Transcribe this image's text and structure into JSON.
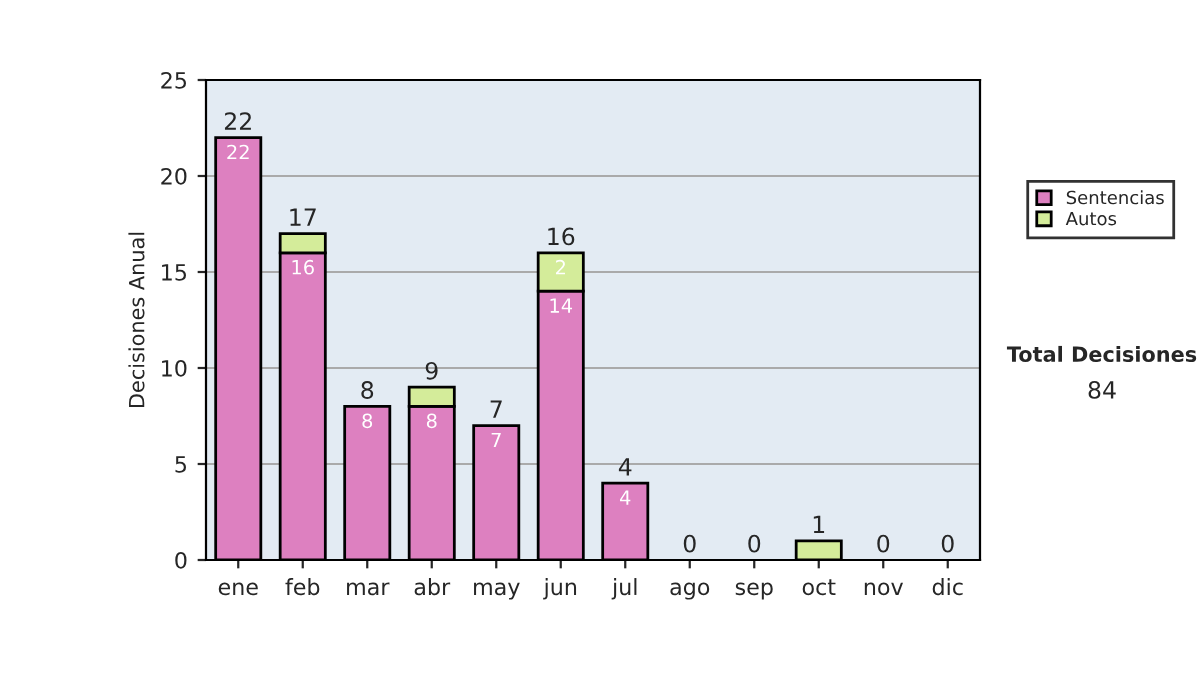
{
  "chart_data": {
    "type": "bar",
    "stacked": true,
    "ylabel": "Decisiones Anual",
    "categories": [
      "ene",
      "feb",
      "mar",
      "abr",
      "may",
      "jun",
      "jul",
      "ago",
      "sep",
      "oct",
      "nov",
      "dic"
    ],
    "series": [
      {
        "name": "Sentencias",
        "color": "#dd80c0",
        "values": [
          22,
          16,
          8,
          8,
          7,
          14,
          4,
          0,
          0,
          0,
          0,
          0
        ],
        "value_labels": [
          "22",
          "16",
          "8",
          "8",
          "7",
          "14",
          "4",
          null,
          null,
          null,
          null,
          null
        ]
      },
      {
        "name": "Autos",
        "color": "#d4ec9a",
        "values": [
          0,
          1,
          0,
          1,
          0,
          2,
          0,
          0,
          0,
          1,
          0,
          0
        ],
        "value_labels": [
          null,
          null,
          null,
          null,
          null,
          "2",
          null,
          null,
          null,
          null,
          null,
          null
        ]
      }
    ],
    "totals": [
      "22",
      "17",
      "8",
      "9",
      "7",
      "16",
      "4",
      "0",
      "0",
      "1",
      "0",
      "0"
    ],
    "ylim": [
      0,
      25
    ],
    "yticks": [
      0,
      5,
      10,
      15,
      20,
      25
    ],
    "grid": "y",
    "legend": "right",
    "annotations": [
      "Total Decisiones",
      "84"
    ]
  }
}
